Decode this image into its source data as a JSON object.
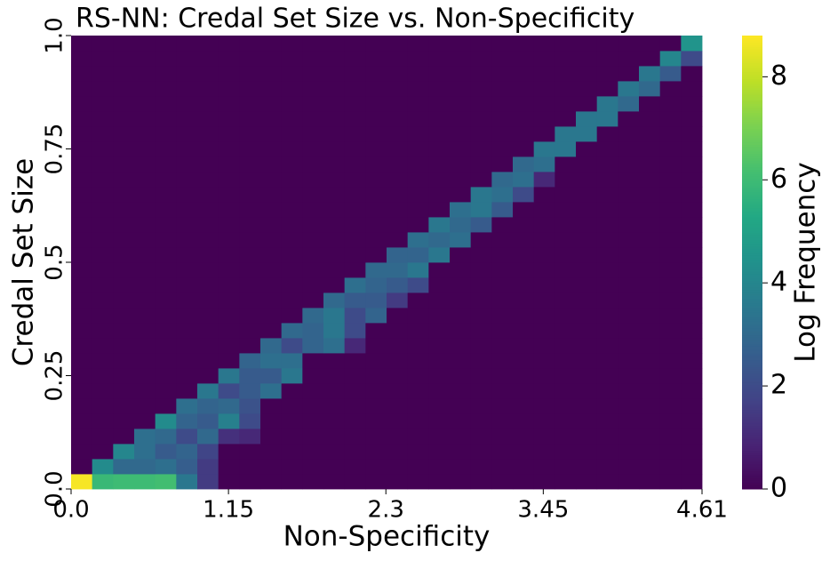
{
  "chart_data": {
    "type": "heatmap",
    "title": "RS-NN: Credal Set Size vs. Non-Specificity",
    "x_label": "Non-Specificity",
    "y_label": "Credal Set Size",
    "xlim": [
      0,
      4.61
    ],
    "ylim": [
      0,
      1
    ],
    "xticks": [
      {
        "value": 0,
        "label": "0.0"
      },
      1.15,
      2.3,
      3.45,
      4.61
    ],
    "yticks": [
      {
        "value": 0,
        "label": "0.0"
      },
      0.25,
      0.5,
      0.75,
      {
        "value": 1,
        "label": "1.0"
      }
    ],
    "colormap": "viridis",
    "colorbar": {
      "label": "Log Frequency",
      "lim": [
        0,
        8.8
      ],
      "ticks": [
        0,
        2,
        4,
        6,
        8
      ]
    },
    "values": [
      [
        8.7,
        5.9,
        6.0,
        6.0,
        6.1,
        3.5,
        1.5,
        0,
        0,
        0,
        0,
        0,
        0,
        0,
        0,
        0,
        0,
        0,
        0,
        0,
        0,
        0,
        0,
        0,
        0,
        0,
        0,
        0,
        0,
        0
      ],
      [
        0,
        4.2,
        3.0,
        3.0,
        3.2,
        2.6,
        1.5,
        0,
        0,
        0,
        0,
        0,
        0,
        0,
        0,
        0,
        0,
        0,
        0,
        0,
        0,
        0,
        0,
        0,
        0,
        0,
        0,
        0,
        0,
        0
      ],
      [
        0,
        0,
        4.0,
        3.2,
        2.5,
        2.8,
        1.8,
        0,
        0,
        0,
        0,
        0,
        0,
        0,
        0,
        0,
        0,
        0,
        0,
        0,
        0,
        0,
        0,
        0,
        0,
        0,
        0,
        0,
        0,
        0
      ],
      [
        0,
        0,
        0,
        3.2,
        3.0,
        2.0,
        3.0,
        1.2,
        1.0,
        0,
        0,
        0,
        0,
        0,
        0,
        0,
        0,
        0,
        0,
        0,
        0,
        0,
        0,
        0,
        0,
        0,
        0,
        0,
        0,
        0
      ],
      [
        0,
        0,
        0,
        0,
        4.2,
        2.8,
        2.5,
        3.8,
        2.0,
        0,
        0,
        0,
        0,
        0,
        0,
        0,
        0,
        0,
        0,
        0,
        0,
        0,
        0,
        0,
        0,
        0,
        0,
        0,
        0,
        0
      ],
      [
        0,
        0,
        0,
        0,
        0,
        3.2,
        2.8,
        3.0,
        2.2,
        0,
        0,
        0,
        0,
        0,
        0,
        0,
        0,
        0,
        0,
        0,
        0,
        0,
        0,
        0,
        0,
        0,
        0,
        0,
        0,
        0
      ],
      [
        0,
        0,
        0,
        0,
        0,
        0,
        3.5,
        2.0,
        2.5,
        3.2,
        0,
        0,
        0,
        0,
        0,
        0,
        0,
        0,
        0,
        0,
        0,
        0,
        0,
        0,
        0,
        0,
        0,
        0,
        0,
        0
      ],
      [
        0,
        0,
        0,
        0,
        0,
        0,
        0,
        3.5,
        2.5,
        2.5,
        3.5,
        0,
        0,
        0,
        0,
        0,
        0,
        0,
        0,
        0,
        0,
        0,
        0,
        0,
        0,
        0,
        0,
        0,
        0,
        0
      ],
      [
        0,
        0,
        0,
        0,
        0,
        0,
        0,
        0,
        2.8,
        3.2,
        3.2,
        0,
        0,
        0,
        0,
        0,
        0,
        0,
        0,
        0,
        0,
        0,
        0,
        0,
        0,
        0,
        0,
        0,
        0,
        0
      ],
      [
        0,
        0,
        0,
        0,
        0,
        0,
        0,
        0,
        0,
        3.0,
        2.0,
        2.8,
        3.2,
        1.0,
        0,
        0,
        0,
        0,
        0,
        0,
        0,
        0,
        0,
        0,
        0,
        0,
        0,
        0,
        0,
        0
      ],
      [
        0,
        0,
        0,
        0,
        0,
        0,
        0,
        0,
        0,
        0,
        3.0,
        2.8,
        3.5,
        2.0,
        0,
        0,
        0,
        0,
        0,
        0,
        0,
        0,
        0,
        0,
        0,
        0,
        0,
        0,
        0,
        0
      ],
      [
        0,
        0,
        0,
        0,
        0,
        0,
        0,
        0,
        0,
        0,
        0,
        3.0,
        3.5,
        2.0,
        2.8,
        0,
        0,
        0,
        0,
        0,
        0,
        0,
        0,
        0,
        0,
        0,
        0,
        0,
        0,
        0
      ],
      [
        0,
        0,
        0,
        0,
        0,
        0,
        0,
        0,
        0,
        0,
        0,
        0,
        3.0,
        2.5,
        2.5,
        1.5,
        0,
        0,
        0,
        0,
        0,
        0,
        0,
        0,
        0,
        0,
        0,
        0,
        0,
        0
      ],
      [
        0,
        0,
        0,
        0,
        0,
        0,
        0,
        0,
        0,
        0,
        0,
        0,
        0,
        3.2,
        2.8,
        2.5,
        2.0,
        0,
        0,
        0,
        0,
        0,
        0,
        0,
        0,
        0,
        0,
        0,
        0,
        0
      ],
      [
        0,
        0,
        0,
        0,
        0,
        0,
        0,
        0,
        0,
        0,
        0,
        0,
        0,
        0,
        3.0,
        3.0,
        3.5,
        0,
        0,
        0,
        0,
        0,
        0,
        0,
        0,
        0,
        0,
        0,
        0,
        0
      ],
      [
        0,
        0,
        0,
        0,
        0,
        0,
        0,
        0,
        0,
        0,
        0,
        0,
        0,
        0,
        0,
        2.8,
        2.8,
        3.5,
        0,
        0,
        0,
        0,
        0,
        0,
        0,
        0,
        0,
        0,
        0,
        0
      ],
      [
        0,
        0,
        0,
        0,
        0,
        0,
        0,
        0,
        0,
        0,
        0,
        0,
        0,
        0,
        0,
        0,
        3.2,
        3.0,
        3.2,
        0,
        0,
        0,
        0,
        0,
        0,
        0,
        0,
        0,
        0,
        0
      ],
      [
        0,
        0,
        0,
        0,
        0,
        0,
        0,
        0,
        0,
        0,
        0,
        0,
        0,
        0,
        0,
        0,
        0,
        3.5,
        3.0,
        2.5,
        0,
        0,
        0,
        0,
        0,
        0,
        0,
        0,
        0,
        0
      ],
      [
        0,
        0,
        0,
        0,
        0,
        0,
        0,
        0,
        0,
        0,
        0,
        0,
        0,
        0,
        0,
        0,
        0,
        0,
        3.2,
        3.5,
        2.5,
        0,
        0,
        0,
        0,
        0,
        0,
        0,
        0,
        0
      ],
      [
        0,
        0,
        0,
        0,
        0,
        0,
        0,
        0,
        0,
        0,
        0,
        0,
        0,
        0,
        0,
        0,
        0,
        0,
        0,
        3.5,
        3.2,
        2.0,
        0,
        0,
        0,
        0,
        0,
        0,
        0,
        0
      ],
      [
        0,
        0,
        0,
        0,
        0,
        0,
        0,
        0,
        0,
        0,
        0,
        0,
        0,
        0,
        0,
        0,
        0,
        0,
        0,
        0,
        3.0,
        3.2,
        1.0,
        0,
        0,
        0,
        0,
        0,
        0,
        0
      ],
      [
        0,
        0,
        0,
        0,
        0,
        0,
        0,
        0,
        0,
        0,
        0,
        0,
        0,
        0,
        0,
        0,
        0,
        0,
        0,
        0,
        0,
        3.0,
        3.2,
        0,
        0,
        0,
        0,
        0,
        0,
        0
      ],
      [
        0,
        0,
        0,
        0,
        0,
        0,
        0,
        0,
        0,
        0,
        0,
        0,
        0,
        0,
        0,
        0,
        0,
        0,
        0,
        0,
        0,
        0,
        3.5,
        3.5,
        0,
        0,
        0,
        0,
        0,
        0
      ],
      [
        0,
        0,
        0,
        0,
        0,
        0,
        0,
        0,
        0,
        0,
        0,
        0,
        0,
        0,
        0,
        0,
        0,
        0,
        0,
        0,
        0,
        0,
        0,
        3.5,
        3.5,
        0,
        0,
        0,
        0,
        0
      ],
      [
        0,
        0,
        0,
        0,
        0,
        0,
        0,
        0,
        0,
        0,
        0,
        0,
        0,
        0,
        0,
        0,
        0,
        0,
        0,
        0,
        0,
        0,
        0,
        0,
        3.5,
        3.5,
        0,
        0,
        0,
        0
      ],
      [
        0,
        0,
        0,
        0,
        0,
        0,
        0,
        0,
        0,
        0,
        0,
        0,
        0,
        0,
        0,
        0,
        0,
        0,
        0,
        0,
        0,
        0,
        0,
        0,
        0,
        3.5,
        3.0,
        0,
        0,
        0
      ],
      [
        0,
        0,
        0,
        0,
        0,
        0,
        0,
        0,
        0,
        0,
        0,
        0,
        0,
        0,
        0,
        0,
        0,
        0,
        0,
        0,
        0,
        0,
        0,
        0,
        0,
        0,
        3.5,
        3.0,
        0,
        0
      ],
      [
        0,
        0,
        0,
        0,
        0,
        0,
        0,
        0,
        0,
        0,
        0,
        0,
        0,
        0,
        0,
        0,
        0,
        0,
        0,
        0,
        0,
        0,
        0,
        0,
        0,
        0,
        0,
        3.5,
        2.5,
        0
      ],
      [
        0,
        0,
        0,
        0,
        0,
        0,
        0,
        0,
        0,
        0,
        0,
        0,
        0,
        0,
        0,
        0,
        0,
        0,
        0,
        0,
        0,
        0,
        0,
        0,
        0,
        0,
        0,
        0,
        4.0,
        2.0
      ],
      [
        0,
        0,
        0,
        0,
        0,
        0,
        0,
        0,
        0,
        0,
        0,
        0,
        0,
        0,
        0,
        0,
        0,
        0,
        0,
        0,
        0,
        0,
        0,
        0,
        0,
        0,
        0,
        0,
        0,
        4.5
      ]
    ]
  }
}
